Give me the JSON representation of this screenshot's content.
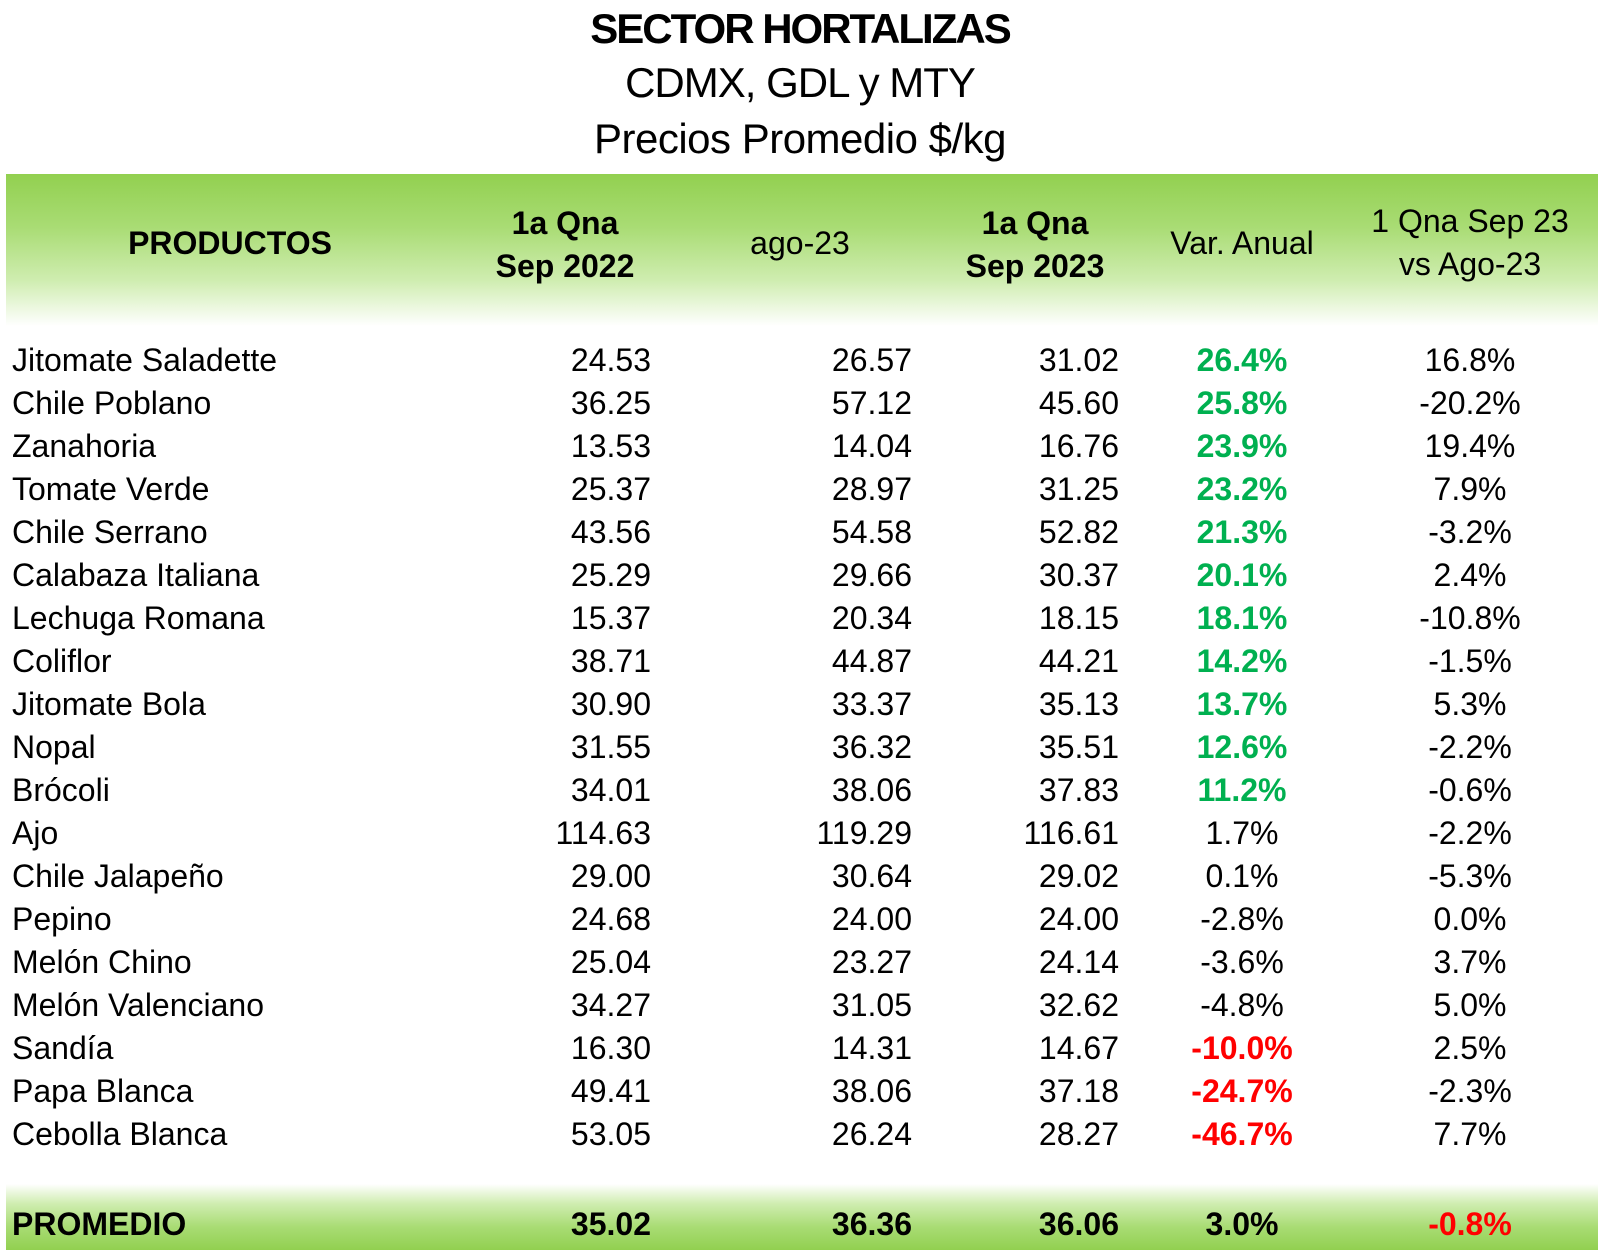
{
  "title": "SECTOR HORTALIZAS",
  "subtitle": "CDMX, GDL y MTY",
  "subtitle2": "Precios Promedio $/kg",
  "colors": {
    "header_green": "#92d050",
    "positive": "#00b050",
    "negative": "#ff0000"
  },
  "headers": {
    "productos": "PRODUCTOS",
    "col1_line1": "1a Qna",
    "col1_line2": "Sep 2022",
    "col2": "ago-23",
    "col3_line1": "1a Qna",
    "col3_line2": "Sep 2023",
    "col4": "Var. Anual",
    "col5_line1": "1 Qna Sep 23",
    "col5_line2": "vs Ago-23"
  },
  "rows": [
    {
      "name": "Jitomate Saladette",
      "sep22": "24.53",
      "ago23": "26.57",
      "sep23": "31.02",
      "var": "26.4%",
      "var_status": "pos",
      "qna": "16.8%"
    },
    {
      "name": "Chile Poblano",
      "sep22": "36.25",
      "ago23": "57.12",
      "sep23": "45.60",
      "var": "25.8%",
      "var_status": "pos",
      "qna": "-20.2%"
    },
    {
      "name": "Zanahoria",
      "sep22": "13.53",
      "ago23": "14.04",
      "sep23": "16.76",
      "var": "23.9%",
      "var_status": "pos",
      "qna": "19.4%"
    },
    {
      "name": "Tomate Verde",
      "sep22": "25.37",
      "ago23": "28.97",
      "sep23": "31.25",
      "var": "23.2%",
      "var_status": "pos",
      "qna": "7.9%"
    },
    {
      "name": "Chile Serrano",
      "sep22": "43.56",
      "ago23": "54.58",
      "sep23": "52.82",
      "var": "21.3%",
      "var_status": "pos",
      "qna": "-3.2%"
    },
    {
      "name": "Calabaza Italiana",
      "sep22": "25.29",
      "ago23": "29.66",
      "sep23": "30.37",
      "var": "20.1%",
      "var_status": "pos",
      "qna": "2.4%"
    },
    {
      "name": "Lechuga Romana",
      "sep22": "15.37",
      "ago23": "20.34",
      "sep23": "18.15",
      "var": "18.1%",
      "var_status": "pos",
      "qna": "-10.8%"
    },
    {
      "name": "Coliflor",
      "sep22": "38.71",
      "ago23": "44.87",
      "sep23": "44.21",
      "var": "14.2%",
      "var_status": "pos",
      "qna": "-1.5%"
    },
    {
      "name": "Jitomate Bola",
      "sep22": "30.90",
      "ago23": "33.37",
      "sep23": "35.13",
      "var": "13.7%",
      "var_status": "pos",
      "qna": "5.3%"
    },
    {
      "name": "Nopal",
      "sep22": "31.55",
      "ago23": "36.32",
      "sep23": "35.51",
      "var": "12.6%",
      "var_status": "pos",
      "qna": "-2.2%"
    },
    {
      "name": "Brócoli",
      "sep22": "34.01",
      "ago23": "38.06",
      "sep23": "37.83",
      "var": "11.2%",
      "var_status": "pos",
      "qna": "-0.6%"
    },
    {
      "name": "Ajo",
      "sep22": "114.63",
      "ago23": "119.29",
      "sep23": "116.61",
      "var": "1.7%",
      "var_status": "neutral",
      "qna": "-2.2%"
    },
    {
      "name": "Chile Jalapeño",
      "sep22": "29.00",
      "ago23": "30.64",
      "sep23": "29.02",
      "var": "0.1%",
      "var_status": "neutral",
      "qna": "-5.3%"
    },
    {
      "name": "Pepino",
      "sep22": "24.68",
      "ago23": "24.00",
      "sep23": "24.00",
      "var": "-2.8%",
      "var_status": "neutral",
      "qna": "0.0%"
    },
    {
      "name": "Melón Chino",
      "sep22": "25.04",
      "ago23": "23.27",
      "sep23": "24.14",
      "var": "-3.6%",
      "var_status": "neutral",
      "qna": "3.7%"
    },
    {
      "name": "Melón Valenciano",
      "sep22": "34.27",
      "ago23": "31.05",
      "sep23": "32.62",
      "var": "-4.8%",
      "var_status": "neutral",
      "qna": "5.0%"
    },
    {
      "name": "Sandía",
      "sep22": "16.30",
      "ago23": "14.31",
      "sep23": "14.67",
      "var": "-10.0%",
      "var_status": "neg",
      "qna": "2.5%"
    },
    {
      "name": "Papa Blanca",
      "sep22": "49.41",
      "ago23": "38.06",
      "sep23": "37.18",
      "var": "-24.7%",
      "var_status": "neg",
      "qna": "-2.3%"
    },
    {
      "name": "Cebolla Blanca",
      "sep22": "53.05",
      "ago23": "26.24",
      "sep23": "28.27",
      "var": "-46.7%",
      "var_status": "neg",
      "qna": "7.7%"
    }
  ],
  "footer": {
    "name": "PROMEDIO",
    "sep22": "35.02",
    "ago23": "36.36",
    "sep23": "36.06",
    "var": "3.0%",
    "qna": "-0.8%",
    "qna_status": "neg"
  }
}
